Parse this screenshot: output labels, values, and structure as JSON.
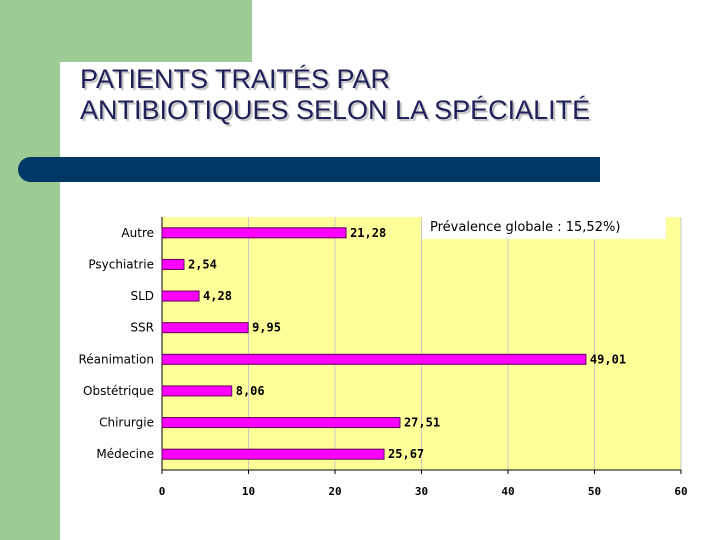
{
  "slide": {
    "title_line1": "PATIENTS TRAITÉS PAR",
    "title_line2": "ANTIBIOTIQUES SELON LA SPÉCIALITÉ"
  },
  "colors": {
    "bar": "#ff00ff",
    "bar_border": "#5a005a",
    "plot_bg": "#ffff99",
    "divider": "#003865",
    "green": "#9ccc94"
  },
  "chart_data": {
    "type": "bar",
    "orientation": "horizontal",
    "title": "",
    "xlabel": "",
    "ylabel": "",
    "categories": [
      "Autre",
      "Psychiatrie",
      "SLD",
      "SSR",
      "Réanimation",
      "Obstétrique",
      "Chirurgie",
      "Médecine"
    ],
    "values": [
      21.28,
      2.54,
      4.28,
      9.95,
      49.01,
      8.06,
      27.51,
      25.67
    ],
    "value_labels": [
      "21,28",
      "2,54",
      "4,28",
      "9,95",
      "49,01",
      "8,06",
      "27,51",
      "25,67"
    ],
    "xlim": [
      0,
      60
    ],
    "xticks": [
      0,
      10,
      20,
      30,
      40,
      50,
      60
    ],
    "grid": true,
    "annotation": "Prévalence globale : 15,52%)"
  }
}
